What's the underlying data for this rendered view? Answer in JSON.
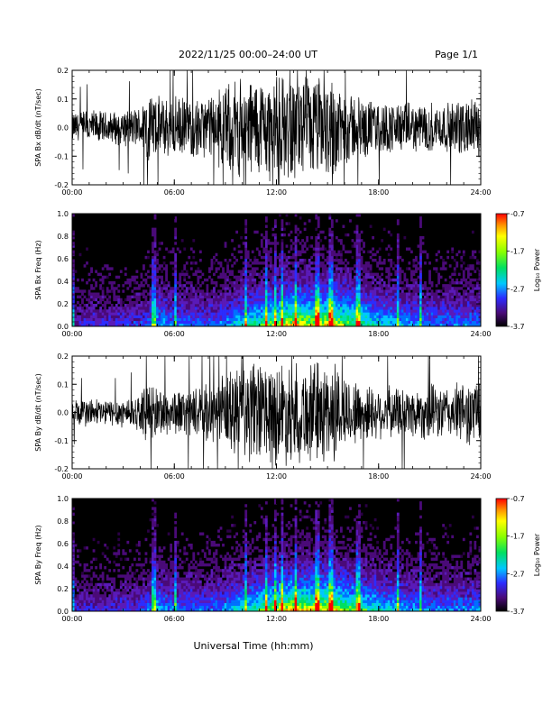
{
  "header": {
    "title": "2022/11/25  00:00–24:00 UT",
    "page": "Page 1/1"
  },
  "xlabel": "Universal Time (hh:mm)",
  "x_ticks": [
    "00:00",
    "06:00",
    "12:00",
    "18:00",
    "24:00"
  ],
  "chart_data": [
    {
      "type": "line",
      "ylabel": "SPA Bx dB/dt (nT/sec)",
      "xlim": [
        0,
        24
      ],
      "ylim": [
        -0.2,
        0.2
      ],
      "yticks": [
        "-0.2",
        "-0.1",
        "0.0",
        "0.1",
        "0.2"
      ],
      "envelope": {
        "hours": [
          0,
          1,
          2,
          3,
          4,
          4.5,
          5,
          6,
          7,
          8,
          8.5,
          9,
          9.5,
          10,
          11,
          12,
          13,
          14,
          15,
          15.5,
          16,
          17,
          18,
          19,
          20,
          21,
          22,
          23,
          24
        ],
        "amplitude": [
          0.06,
          0.07,
          0.06,
          0.07,
          0.08,
          0.15,
          0.12,
          0.12,
          0.11,
          0.12,
          0.14,
          0.16,
          0.18,
          0.2,
          0.2,
          0.2,
          0.2,
          0.2,
          0.2,
          0.2,
          0.15,
          0.12,
          0.1,
          0.1,
          0.09,
          0.1,
          0.09,
          0.11,
          0.12
        ]
      }
    },
    {
      "type": "heatmap",
      "ylabel": "SPA Bx Freq (Hz)",
      "xlim": [
        0,
        24
      ],
      "ylim": [
        0,
        1.0
      ],
      "yticks": [
        "0.0",
        "0.2",
        "0.4",
        "0.6",
        "0.8",
        "1.0"
      ],
      "colorbar": {
        "label": "Log₁₀ Power",
        "range": [
          -3.7,
          -0.7
        ],
        "ticks": [
          "-0.7",
          "-1.7",
          "-2.7",
          "-3.7"
        ]
      }
    },
    {
      "type": "line",
      "ylabel": "SPA By dB/dt (nT/sec)",
      "xlim": [
        0,
        24
      ],
      "ylim": [
        -0.2,
        0.2
      ],
      "yticks": [
        "-0.2",
        "-0.1",
        "0.0",
        "0.1",
        "0.2"
      ],
      "envelope": {
        "hours": [
          0,
          1,
          2,
          3,
          4,
          4.5,
          5,
          6,
          7,
          8,
          8.5,
          9,
          9.5,
          10,
          11,
          12,
          13,
          14,
          15,
          15.5,
          16,
          17,
          18,
          19,
          20,
          21,
          22,
          23,
          24
        ],
        "amplitude": [
          0.05,
          0.06,
          0.05,
          0.06,
          0.07,
          0.12,
          0.1,
          0.09,
          0.09,
          0.11,
          0.13,
          0.15,
          0.18,
          0.2,
          0.2,
          0.2,
          0.2,
          0.2,
          0.2,
          0.2,
          0.14,
          0.12,
          0.1,
          0.1,
          0.1,
          0.11,
          0.1,
          0.12,
          0.14
        ]
      }
    },
    {
      "type": "heatmap",
      "ylabel": "SPA By Freq (Hz)",
      "xlim": [
        0,
        24
      ],
      "ylim": [
        0,
        1.0
      ],
      "yticks": [
        "0.0",
        "0.2",
        "0.4",
        "0.6",
        "0.8",
        "1.0"
      ],
      "colorbar": {
        "label": "Log₁₀ Power",
        "range": [
          -3.7,
          -0.7
        ],
        "ticks": [
          "-0.7",
          "-1.7",
          "-2.7",
          "-3.7"
        ]
      }
    }
  ]
}
